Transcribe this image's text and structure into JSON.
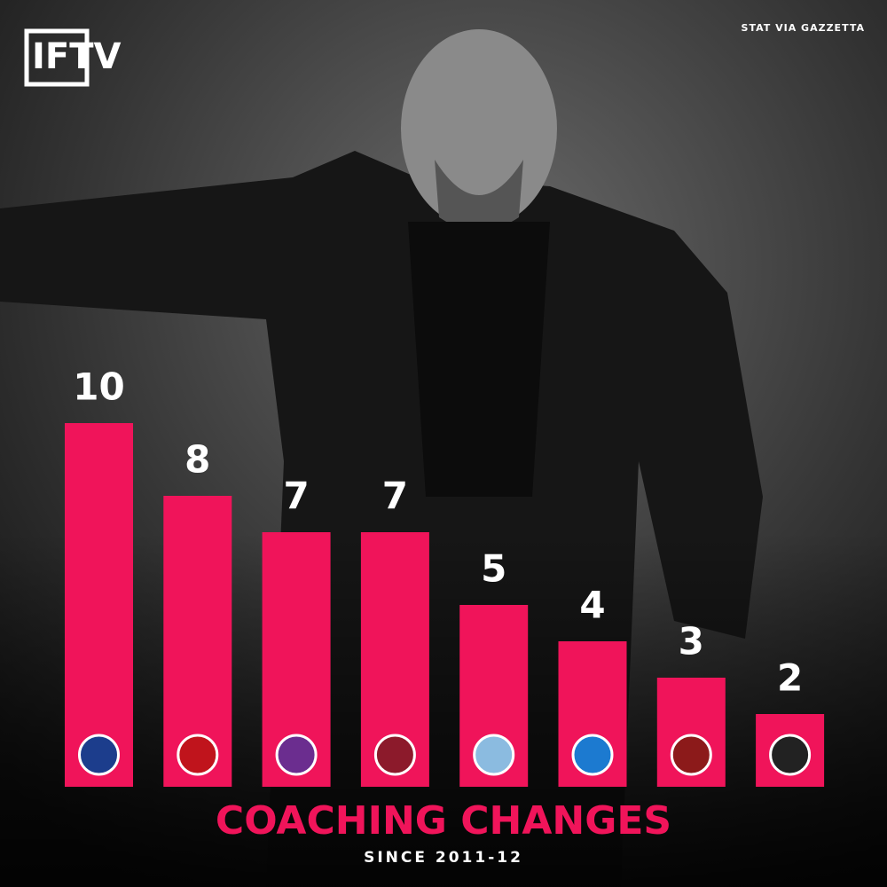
{
  "brand": "IFTV",
  "source": "STAT VIA GAZZETTA",
  "chart_data": {
    "type": "bar",
    "title": "COACHING CHANGES",
    "subtitle": "SINCE 2011-12",
    "categories": [
      null,
      null,
      null,
      null,
      null,
      null,
      null,
      null
    ],
    "values": [
      10,
      8,
      7,
      7,
      5,
      4,
      3,
      2
    ],
    "color": "#f0145a"
  }
}
